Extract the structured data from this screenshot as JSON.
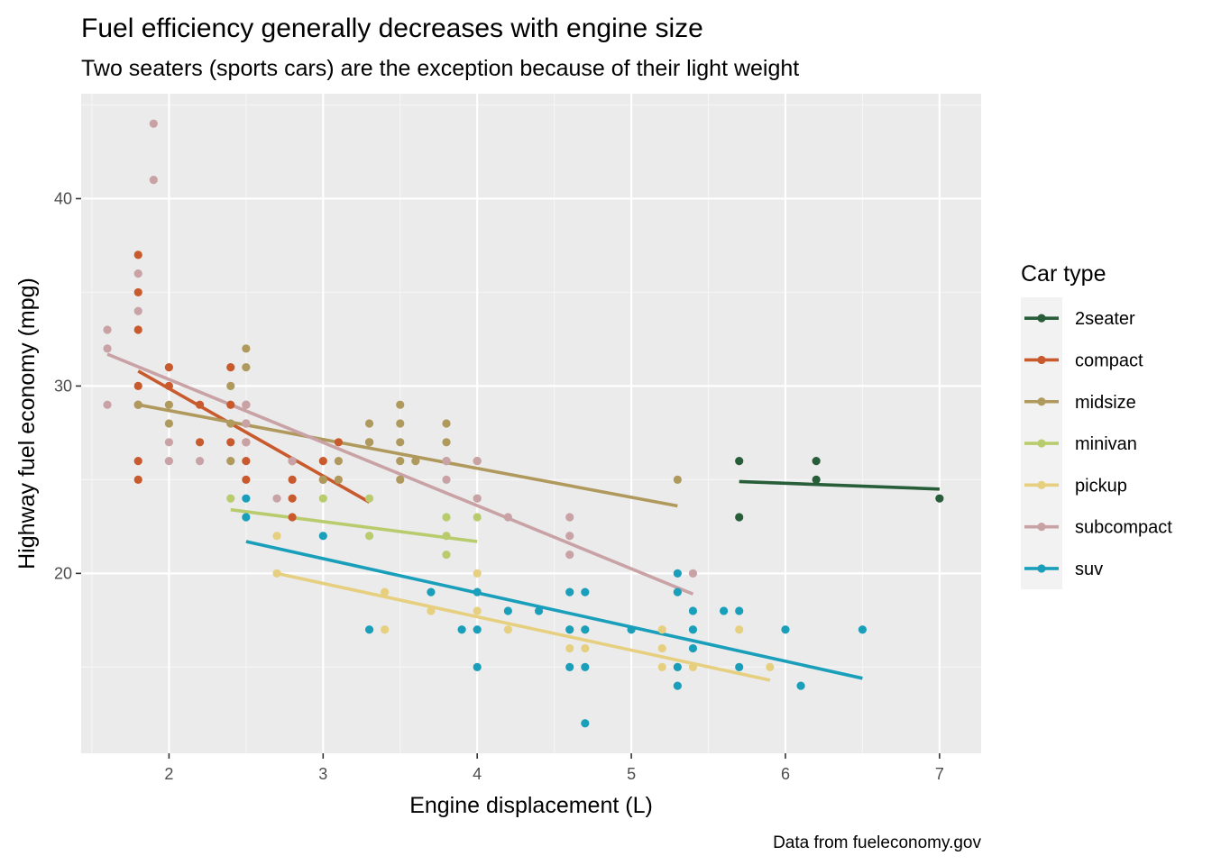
{
  "chart_data": {
    "type": "scatter",
    "title": "Fuel efficiency generally decreases with engine size",
    "subtitle": "Two seaters (sports cars) are the exception because of their light weight",
    "caption": "Data from fueleconomy.gov",
    "xlabel": "Engine displacement (L)",
    "ylabel": "Highway fuel economy (mpg)",
    "xlim": [
      1.43,
      7.27
    ],
    "ylim": [
      10.4,
      45.6
    ],
    "x_ticks": [
      2,
      3,
      4,
      5,
      6,
      7
    ],
    "y_ticks": [
      20,
      30,
      40
    ],
    "grid": true,
    "legend": {
      "title": "Car type",
      "placement": "right"
    },
    "series": [
      {
        "name": "2seater",
        "color": "#275d38",
        "points": [
          [
            5.7,
            26
          ],
          [
            5.7,
            23
          ],
          [
            6.2,
            26
          ],
          [
            6.2,
            25
          ],
          [
            7.0,
            24
          ]
        ],
        "fit": [
          [
            5.7,
            24.9
          ],
          [
            7.0,
            24.5
          ]
        ]
      },
      {
        "name": "compact",
        "color": "#c85a2e",
        "points": [
          [
            1.8,
            37
          ],
          [
            1.8,
            35
          ],
          [
            1.8,
            33
          ],
          [
            1.8,
            30
          ],
          [
            1.8,
            29
          ],
          [
            1.8,
            26
          ],
          [
            1.8,
            25
          ],
          [
            2.0,
            31
          ],
          [
            2.0,
            30
          ],
          [
            2.2,
            29
          ],
          [
            2.2,
            27
          ],
          [
            2.4,
            31
          ],
          [
            2.4,
            29
          ],
          [
            2.4,
            27
          ],
          [
            2.5,
            29
          ],
          [
            2.5,
            27
          ],
          [
            2.5,
            26
          ],
          [
            2.5,
            25
          ],
          [
            2.8,
            26
          ],
          [
            2.8,
            25
          ],
          [
            2.8,
            24
          ],
          [
            2.8,
            23
          ],
          [
            3.0,
            26
          ],
          [
            3.0,
            25
          ],
          [
            3.1,
            27
          ],
          [
            3.3,
            27
          ]
        ],
        "fit": [
          [
            1.8,
            30.8
          ],
          [
            3.3,
            23.8
          ]
        ]
      },
      {
        "name": "midsize",
        "color": "#b0995c",
        "points": [
          [
            1.8,
            29
          ],
          [
            2.0,
            29
          ],
          [
            2.0,
            28
          ],
          [
            2.4,
            30
          ],
          [
            2.4,
            28
          ],
          [
            2.4,
            26
          ],
          [
            2.5,
            32
          ],
          [
            2.5,
            31
          ],
          [
            2.5,
            28
          ],
          [
            2.8,
            26
          ],
          [
            3.0,
            25
          ],
          [
            3.1,
            26
          ],
          [
            3.1,
            25
          ],
          [
            3.3,
            28
          ],
          [
            3.3,
            27
          ],
          [
            3.5,
            29
          ],
          [
            3.5,
            28
          ],
          [
            3.5,
            27
          ],
          [
            3.5,
            26
          ],
          [
            3.5,
            25
          ],
          [
            3.6,
            26
          ],
          [
            3.8,
            28
          ],
          [
            3.8,
            27
          ],
          [
            3.8,
            26
          ],
          [
            4.0,
            26
          ],
          [
            5.3,
            25
          ]
        ],
        "fit": [
          [
            1.8,
            29.0
          ],
          [
            5.3,
            23.6
          ]
        ]
      },
      {
        "name": "minivan",
        "color": "#b8cc6e",
        "points": [
          [
            2.4,
            24
          ],
          [
            3.0,
            24
          ],
          [
            3.3,
            24
          ],
          [
            3.3,
            22
          ],
          [
            3.8,
            23
          ],
          [
            3.8,
            22
          ],
          [
            3.8,
            21
          ],
          [
            4.0,
            23
          ],
          [
            4.0,
            24
          ]
        ],
        "fit": [
          [
            2.4,
            23.4
          ],
          [
            4.0,
            21.7
          ]
        ]
      },
      {
        "name": "pickup",
        "color": "#e6cf7f",
        "points": [
          [
            2.7,
            22
          ],
          [
            2.7,
            20
          ],
          [
            3.4,
            19
          ],
          [
            3.4,
            17
          ],
          [
            3.7,
            18
          ],
          [
            4.0,
            20
          ],
          [
            4.0,
            18
          ],
          [
            4.2,
            17
          ],
          [
            4.6,
            17
          ],
          [
            4.6,
            16
          ],
          [
            4.7,
            17
          ],
          [
            4.7,
            16
          ],
          [
            5.2,
            17
          ],
          [
            5.2,
            16
          ],
          [
            5.2,
            15
          ],
          [
            5.3,
            15
          ],
          [
            5.4,
            15
          ],
          [
            5.7,
            17
          ],
          [
            5.9,
            15
          ]
        ],
        "fit": [
          [
            2.7,
            20.0
          ],
          [
            5.9,
            14.3
          ]
        ]
      },
      {
        "name": "subcompact",
        "color": "#c9a2a6",
        "points": [
          [
            1.6,
            33
          ],
          [
            1.6,
            32
          ],
          [
            1.6,
            29
          ],
          [
            1.8,
            36
          ],
          [
            1.8,
            34
          ],
          [
            1.9,
            44
          ],
          [
            1.9,
            41
          ],
          [
            2.0,
            27
          ],
          [
            2.0,
            26
          ],
          [
            2.2,
            26
          ],
          [
            2.5,
            29
          ],
          [
            2.5,
            28
          ],
          [
            2.5,
            27
          ],
          [
            2.7,
            24
          ],
          [
            2.8,
            26
          ],
          [
            3.8,
            25
          ],
          [
            3.8,
            26
          ],
          [
            4.0,
            26
          ],
          [
            4.0,
            24
          ],
          [
            4.2,
            23
          ],
          [
            4.6,
            23
          ],
          [
            4.6,
            22
          ],
          [
            4.6,
            21
          ],
          [
            5.4,
            20
          ]
        ],
        "fit": [
          [
            1.6,
            31.7
          ],
          [
            5.4,
            18.9
          ]
        ]
      },
      {
        "name": "suv",
        "color": "#1a9fbb",
        "points": [
          [
            2.5,
            24
          ],
          [
            2.5,
            23
          ],
          [
            3.0,
            22
          ],
          [
            3.3,
            17
          ],
          [
            3.7,
            19
          ],
          [
            3.9,
            17
          ],
          [
            4.0,
            19
          ],
          [
            4.0,
            17
          ],
          [
            4.0,
            15
          ],
          [
            4.2,
            18
          ],
          [
            4.4,
            18
          ],
          [
            4.6,
            19
          ],
          [
            4.6,
            17
          ],
          [
            4.6,
            15
          ],
          [
            4.7,
            19
          ],
          [
            4.7,
            17
          ],
          [
            4.7,
            15
          ],
          [
            4.7,
            12
          ],
          [
            5.0,
            17
          ],
          [
            5.3,
            20
          ],
          [
            5.3,
            19
          ],
          [
            5.3,
            15
          ],
          [
            5.3,
            14
          ],
          [
            5.4,
            18
          ],
          [
            5.4,
            17
          ],
          [
            5.4,
            16
          ],
          [
            5.6,
            18
          ],
          [
            5.7,
            18
          ],
          [
            5.7,
            15
          ],
          [
            6.0,
            17
          ],
          [
            6.1,
            14
          ],
          [
            6.5,
            17
          ]
        ],
        "fit": [
          [
            2.5,
            21.7
          ],
          [
            6.5,
            14.4
          ]
        ]
      }
    ]
  }
}
